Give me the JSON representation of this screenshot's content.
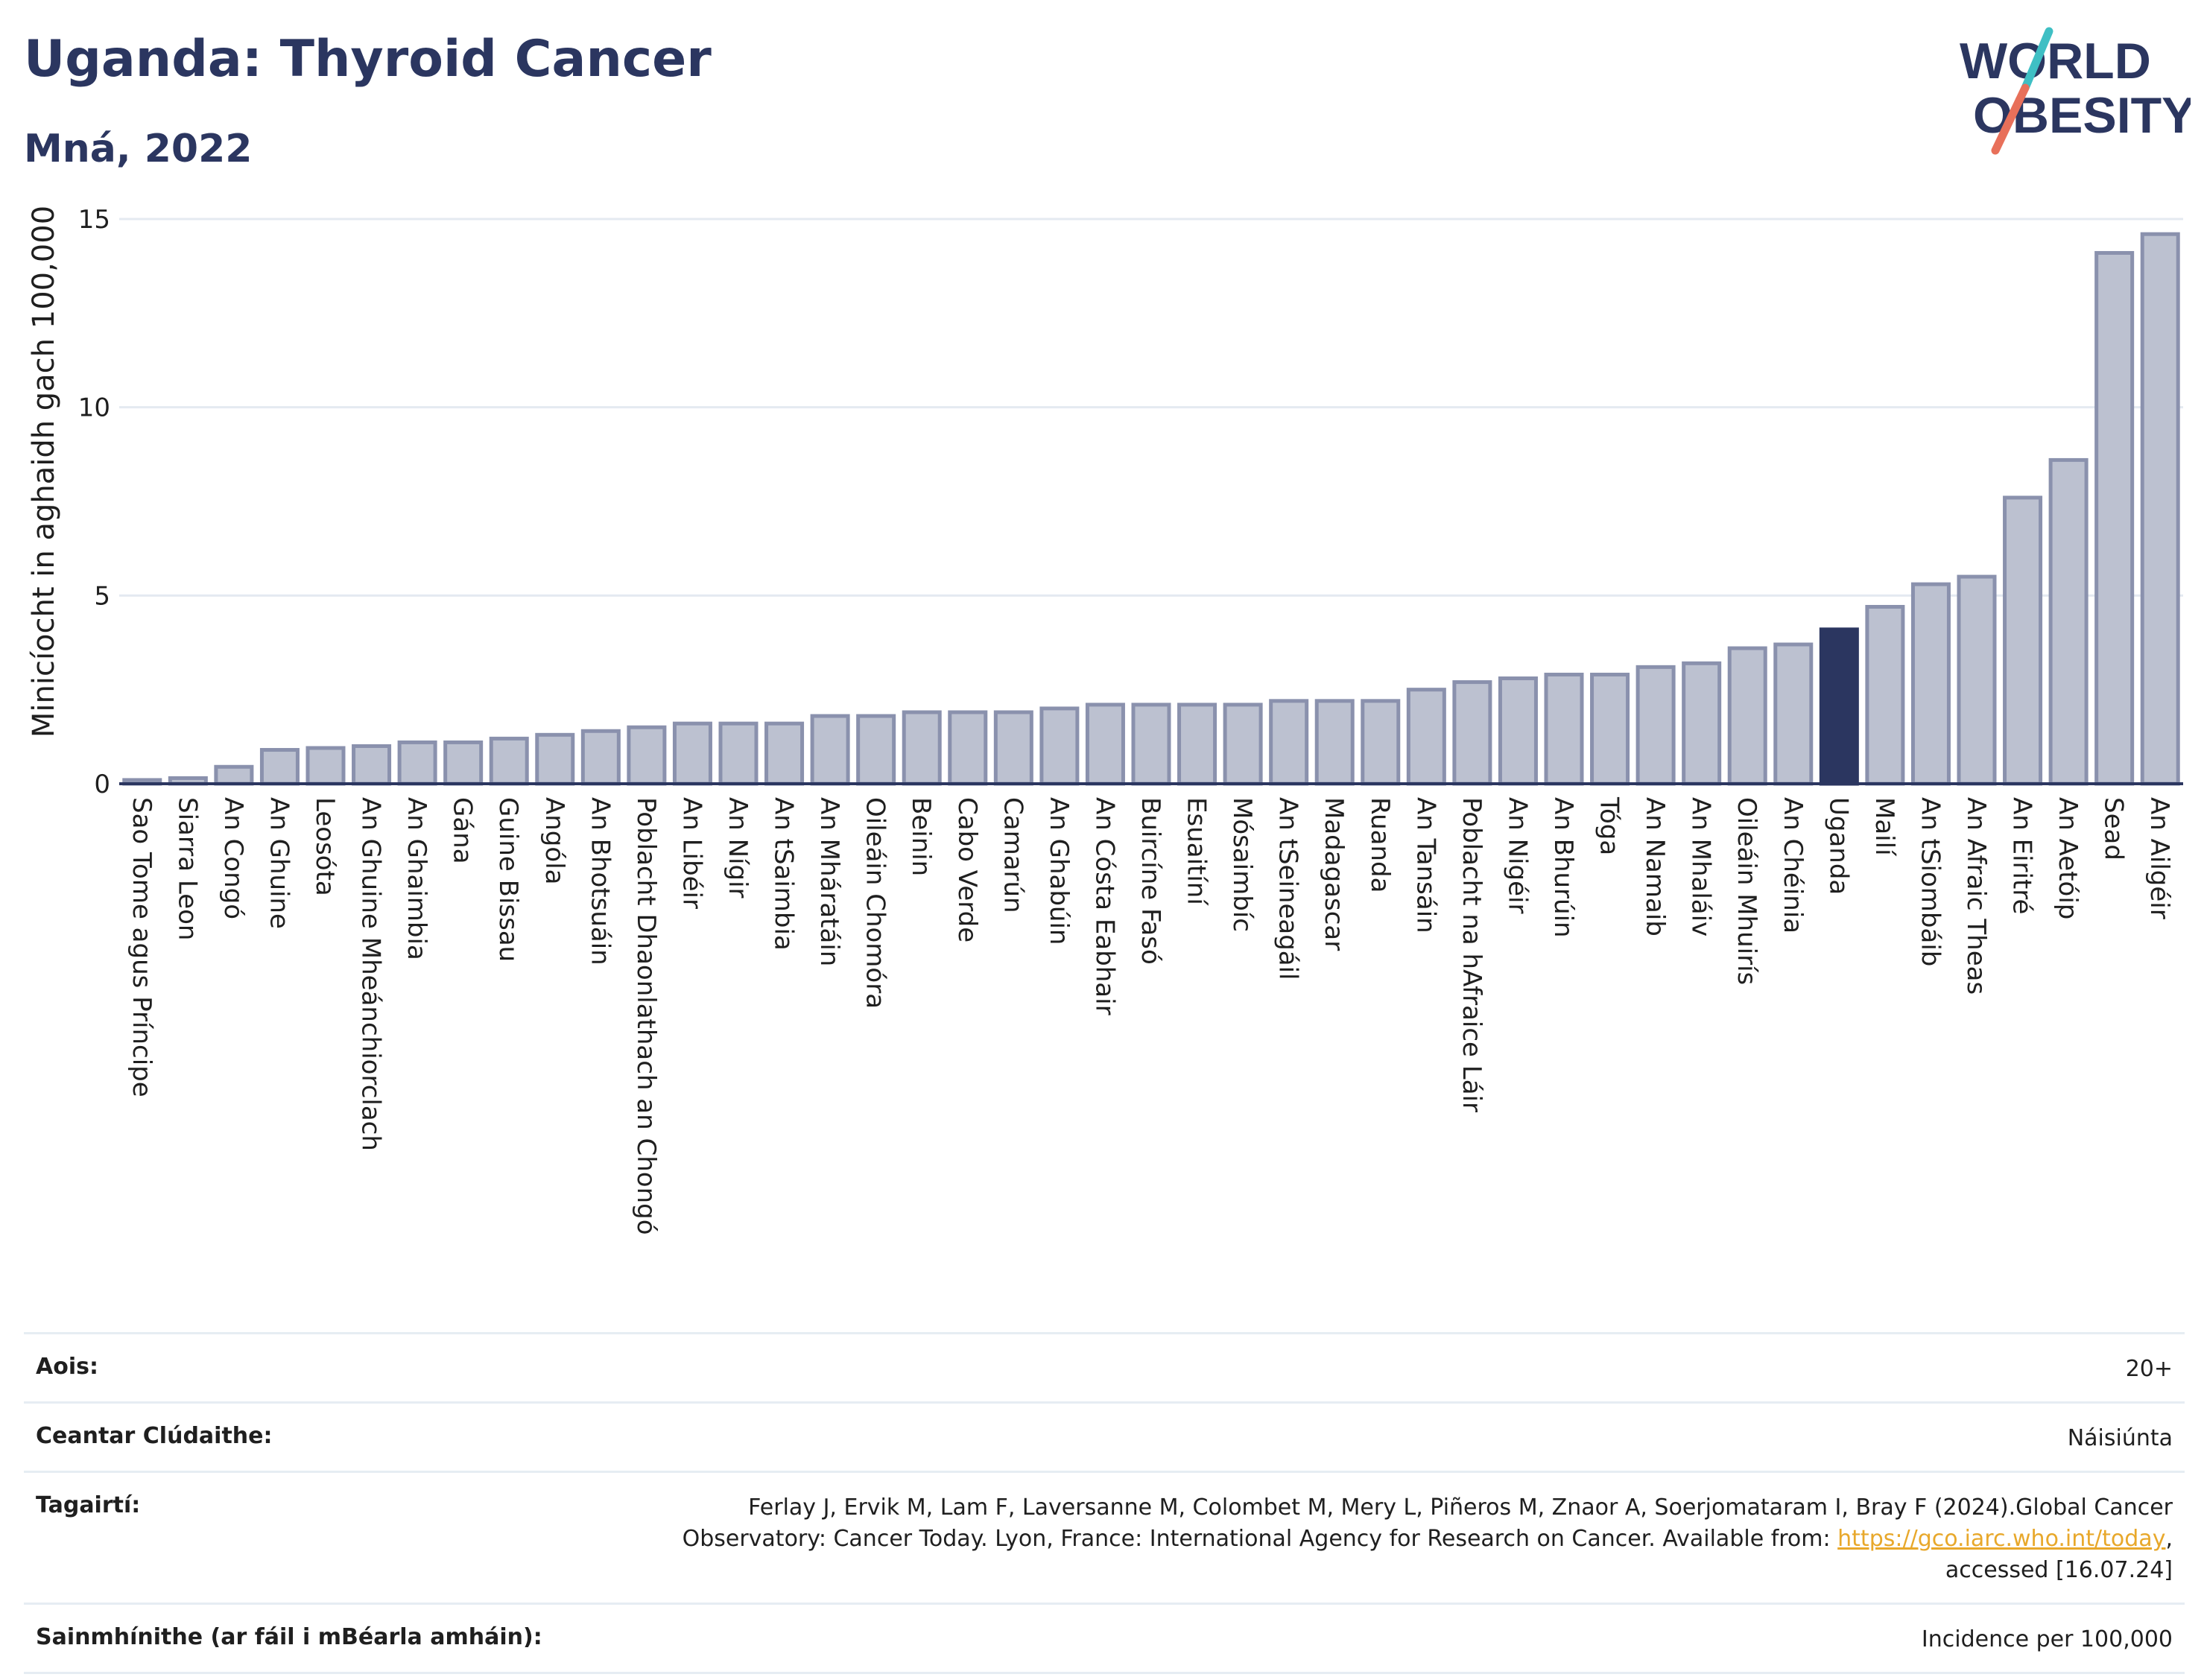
{
  "header": {
    "title": "Uganda: Thyroid Cancer",
    "subtitle": "Mná, 2022"
  },
  "logo": {
    "line1": "WORLD",
    "line2": "OBESITY",
    "text_color": "#2b3660",
    "slash_top_color": "#3fbfc4",
    "slash_bottom_color": "#e8705a"
  },
  "colors": {
    "bar_fill": "#bcc1d0",
    "bar_stroke": "#8a91ad",
    "highlight_fill": "#2b3660",
    "axis": "#2b3660",
    "grid": "#e4eaf1"
  },
  "chart_data": {
    "type": "bar",
    "title": "Uganda: Thyroid Cancer",
    "subtitle": "Mná, 2022",
    "xlabel": "",
    "ylabel": "Minicíocht in aghaidh gach 100,000",
    "ylim": [
      0,
      15
    ],
    "yticks": [
      0,
      5,
      10,
      15
    ],
    "grid": true,
    "highlight": "Uganda",
    "categories": [
      "Sao Tome agus Príncipe",
      "Siarra Leon",
      "An Congó",
      "An Ghuine",
      "Leosóta",
      "An Ghuine Mheánchiorclach",
      "An Ghaimbia",
      "Gána",
      "Guine Bissau",
      "Angóla",
      "An Bhotsuáin",
      "Poblacht Dhaonlathach an Chongó",
      "An Libéir",
      "An Nígir",
      "An tSaimbia",
      "An Mháratáin",
      "Oileáin Chomóra",
      "Beinin",
      "Cabo Verde",
      "Camarún",
      "An Ghabúin",
      "An Cósta Eabhair",
      "Buircíne Fasó",
      "Esuaitíní",
      "Mósaimbíc",
      "An tSeineagáil",
      "Madagascar",
      "Ruanda",
      "An Tansáin",
      "Poblacht na hAfraice Láir",
      "An Nigéir",
      "An Bhurúin",
      "Tóga",
      "An Namaib",
      "An Mhaláiv",
      "Oileáin Mhuirís",
      "An Chéinia",
      "Uganda",
      "Mailí",
      "An tSiombáib",
      "An Afraic Theas",
      "An Eiritré",
      "An Aetóip",
      "Sead",
      "An Ailgéir"
    ],
    "values": [
      0.1,
      0.15,
      0.45,
      0.9,
      0.95,
      1.0,
      1.1,
      1.1,
      1.2,
      1.3,
      1.4,
      1.5,
      1.6,
      1.6,
      1.6,
      1.8,
      1.8,
      1.9,
      1.9,
      1.9,
      2.0,
      2.1,
      2.1,
      2.1,
      2.1,
      2.2,
      2.2,
      2.2,
      2.5,
      2.7,
      2.8,
      2.9,
      2.9,
      3.1,
      3.2,
      3.6,
      3.7,
      4.1,
      4.7,
      5.3,
      5.5,
      7.6,
      8.6,
      14.1,
      14.6
    ]
  },
  "info": {
    "age_label": "Aois:",
    "age_value": "20+",
    "area_label": "Ceantar Clúdaithe:",
    "area_value": "Náisiúnta",
    "ref_label": "Tagairtí:",
    "ref_text_1": "Ferlay J, Ervik M, Lam F, Laversanne M, Colombet M, Mery L, Piñeros M, Znaor A, Soerjomataram I, Bray F (2024).Global Cancer",
    "ref_text_2": "Observatory: Cancer Today. Lyon, France: International Agency for Research on Cancer. Available from: ",
    "ref_link": "https://gco.iarc.who.int/today",
    "ref_text_3": ",",
    "ref_text_4": "accessed [16.07.24]",
    "def_label": "Sainmhínithe (ar fáil i mBéarla amháin):",
    "def_value": "Incidence per 100,000"
  }
}
